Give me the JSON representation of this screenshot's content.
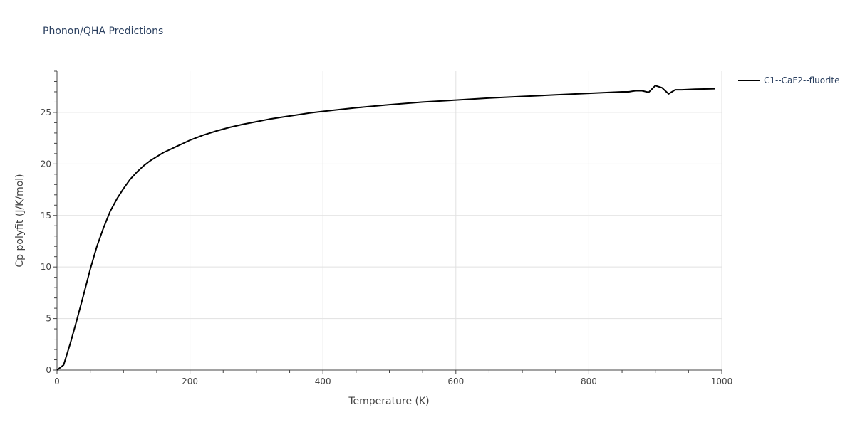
{
  "title": "Phonon/QHA Predictions",
  "chart_data": {
    "type": "line",
    "title": "Phonon/QHA Predictions",
    "xlabel": "Temperature (K)",
    "ylabel": "Cp polyfit (J/K/mol)",
    "xlim": [
      0,
      1000
    ],
    "ylim": [
      0,
      29
    ],
    "xticks": [
      0,
      200,
      400,
      600,
      800,
      1000
    ],
    "yticks": [
      0,
      5,
      10,
      15,
      20,
      25
    ],
    "grid": true,
    "legend_position": "top-right",
    "series": [
      {
        "name": "C1--CaF2--fluorite",
        "color": "#000000",
        "x": [
          0,
          10,
          20,
          30,
          40,
          50,
          60,
          70,
          80,
          90,
          100,
          110,
          120,
          130,
          140,
          150,
          160,
          170,
          180,
          190,
          200,
          210,
          220,
          230,
          240,
          260,
          280,
          300,
          320,
          340,
          360,
          380,
          400,
          450,
          500,
          550,
          600,
          650,
          700,
          750,
          800,
          850,
          860,
          870,
          880,
          890,
          900,
          910,
          920,
          930,
          940,
          960,
          980,
          990
        ],
        "y": [
          0,
          0.5,
          2.6,
          4.9,
          7.3,
          9.8,
          12.0,
          13.8,
          15.4,
          16.6,
          17.6,
          18.5,
          19.2,
          19.8,
          20.3,
          20.7,
          21.1,
          21.4,
          21.7,
          22.0,
          22.3,
          22.55,
          22.8,
          23.0,
          23.2,
          23.55,
          23.85,
          24.1,
          24.35,
          24.55,
          24.75,
          24.95,
          25.1,
          25.45,
          25.75,
          26.0,
          26.2,
          26.4,
          26.55,
          26.7,
          26.85,
          27.0,
          27.0,
          27.1,
          27.1,
          26.95,
          27.6,
          27.4,
          26.8,
          27.2,
          27.2,
          27.25,
          27.28,
          27.3
        ]
      }
    ]
  }
}
